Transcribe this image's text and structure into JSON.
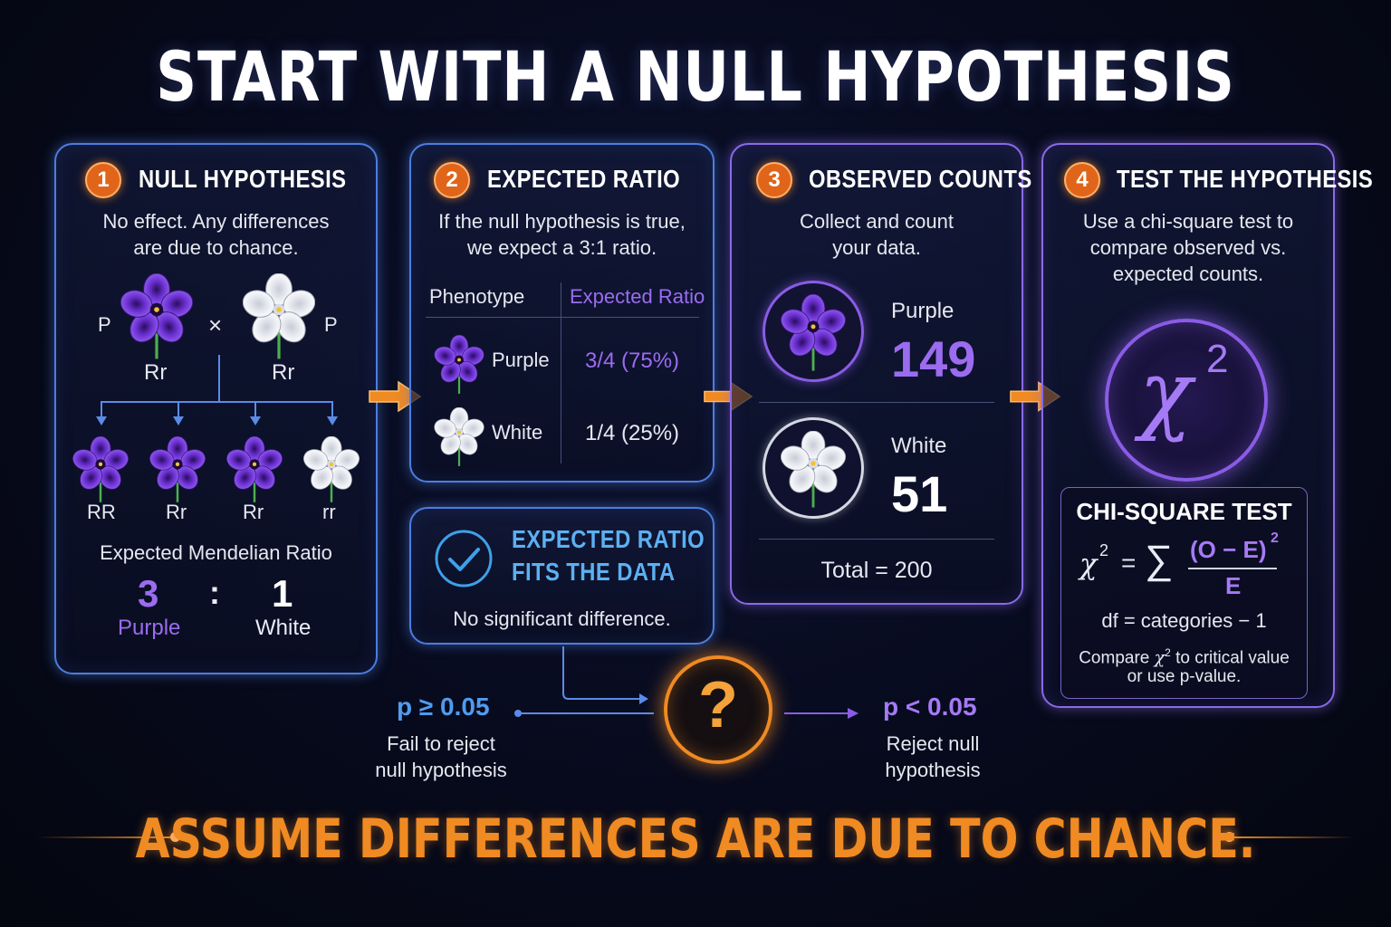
{
  "title": "START WITH A NULL HYPOTHESIS",
  "colors": {
    "accent_orange": "#f08a22",
    "purple": "#9b6cf0",
    "blue": "#4d7de0"
  },
  "panel1": {
    "step": "1",
    "heading": "NULL HYPOTHESIS",
    "desc_line1": "No effect. Any differences",
    "desc_line2": "are due to chance.",
    "parent_left_letter": "P",
    "parent_right_letter": "P",
    "cross_symbol": "×",
    "parent_left_genotype": "Rr",
    "parent_right_genotype": "Rr",
    "offspring": [
      "RR",
      "Rr",
      "Rr",
      "rr"
    ],
    "ratio_label": "Expected Mendelian Ratio",
    "ratio_left": "3",
    "ratio_colon": ":",
    "ratio_right": "1",
    "ratio_left_name": "Purple",
    "ratio_right_name": "White"
  },
  "panel2": {
    "step": "2",
    "heading": "EXPECTED RATIO",
    "desc_line1": "If the null hypothesis is true,",
    "desc_line2": "we expect a 3:1 ratio.",
    "col1_header": "Phenotype",
    "col2_header": "Expected Ratio",
    "rows": [
      {
        "phenotype": "Purple",
        "ratio": "3/4 (75%)"
      },
      {
        "phenotype": "White",
        "ratio": "1/4 (25%)"
      }
    ]
  },
  "fits": {
    "line1": "EXPECTED RATIO",
    "line2": "FITS THE DATA",
    "desc": "No significant difference."
  },
  "panel3": {
    "step": "3",
    "heading": "OBSERVED COUNTS",
    "desc_line1": "Collect and count",
    "desc_line2": "your data.",
    "purple_label": "Purple",
    "purple_count": "149",
    "white_label": "White",
    "white_count": "51",
    "total": "Total = 200"
  },
  "panel4": {
    "step": "4",
    "heading": "TEST THE HYPOTHESIS",
    "desc_line1": "Use a chi-square test to",
    "desc_line2": "compare observed vs.",
    "desc_line3": "expected counts.",
    "chi_symbol": "χ",
    "chi_exp": "2",
    "box_title": "CHI-SQUARE TEST",
    "formula_lhs": "χ",
    "formula_exp": "2",
    "formula_eq": "=",
    "formula_sum": "∑",
    "formula_num": "(O − E)",
    "formula_num_exp": "2",
    "formula_den": "E",
    "df": "df = categories − 1",
    "compare_line1_pre": "Compare ",
    "compare_line1_chi": "χ",
    "compare_line1_exp": "2",
    "compare_line1_post": " to critical value",
    "compare_line2": "or use p-value."
  },
  "decision": {
    "question": "?",
    "left_p": "p ≥ 0.05",
    "left_line1": "Fail to reject",
    "left_line2": "null hypothesis",
    "right_p": "p < 0.05",
    "right_line1": "Reject null",
    "right_line2": "hypothesis"
  },
  "footer": "ASSUME DIFFERENCES ARE DUE TO CHANCE."
}
